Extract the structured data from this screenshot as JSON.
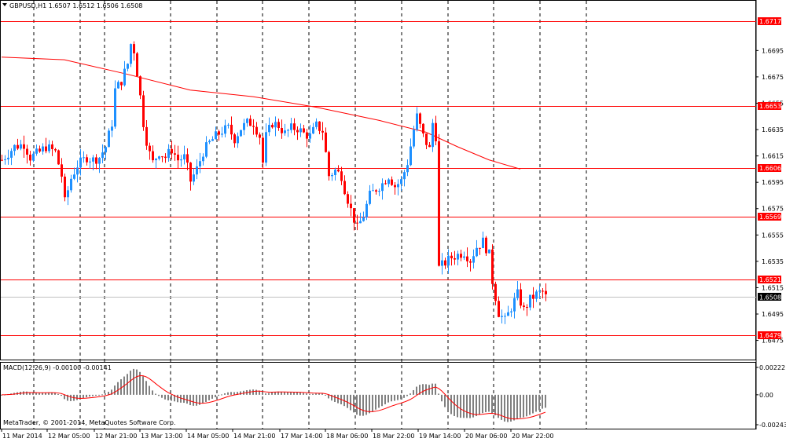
{
  "window": {
    "header": "GBPUSD,H1  1.6507 1.6512 1.6506 1.6508",
    "copyright": "MetaTrader, © 2001-2014, MetaQuotes Software Corp."
  },
  "colors": {
    "bull": "#1e90ff",
    "bear": "#ff0000",
    "ma": "#ff0000",
    "level_line": "#ff0000",
    "grid": "#000000",
    "macd_hist": "#808080",
    "macd_signal": "#ff0000",
    "price_tag_bg": "#ff0000",
    "current_tag_bg": "#000000"
  },
  "price_axis": {
    "ticks": [
      "1.6695",
      "1.6675",
      "1.6655",
      "1.6635",
      "1.6615",
      "1.6595",
      "1.6575",
      "1.6555",
      "1.6535",
      "1.6515",
      "1.6495",
      "1.6475"
    ],
    "levels": [
      "1.6717",
      "1.6653",
      "1.6606",
      "1.6569",
      "1.6521",
      "1.6479"
    ],
    "current_price": "1.6508",
    "range": [
      1.6467,
      1.6725
    ]
  },
  "macd": {
    "label": "MACD(12,26,9) -0.00100 -0.00141",
    "ticks": [
      "0.00222",
      "0.00",
      "-0.00243"
    ],
    "range": [
      -0.00243,
      0.00222
    ]
  },
  "time_axis": {
    "labels": [
      "11 Mar 2014",
      "12 Mar 05:00",
      "12 Mar 21:00",
      "13 Mar 13:00",
      "14 Mar 05:00",
      "14 Mar 21:00",
      "17 Mar 14:00",
      "18 Mar 06:00",
      "18 Mar 22:00",
      "19 Mar 14:00",
      "20 Mar 06:00",
      "20 Mar 22:00"
    ]
  },
  "chart_data": {
    "type": "candlestick",
    "symbol": "GBPUSD",
    "timeframe": "H1",
    "ohlc_last": {
      "open": 1.6507,
      "high": 1.6512,
      "low": 1.6506,
      "close": 1.6508
    },
    "price_anchors": [
      [
        0,
        1.6612
      ],
      [
        8,
        1.6622
      ],
      [
        14,
        1.6624
      ],
      [
        18,
        1.6614
      ],
      [
        24,
        1.6618
      ],
      [
        28,
        1.6622
      ],
      [
        34,
        1.6618
      ],
      [
        38,
        1.66
      ],
      [
        40,
        1.658
      ],
      [
        44,
        1.6598
      ],
      [
        48,
        1.6608
      ],
      [
        54,
        1.6614
      ],
      [
        58,
        1.6612
      ],
      [
        62,
        1.6614
      ],
      [
        66,
        1.6622
      ],
      [
        70,
        1.664
      ],
      [
        72,
        1.6665
      ],
      [
        76,
        1.6672
      ],
      [
        80,
        1.6685
      ],
      [
        82,
        1.67
      ],
      [
        84,
        1.6695
      ],
      [
        87,
        1.667
      ],
      [
        90,
        1.664
      ],
      [
        93,
        1.662
      ],
      [
        96,
        1.661
      ],
      [
        100,
        1.6618
      ],
      [
        104,
        1.6614
      ],
      [
        108,
        1.662
      ],
      [
        112,
        1.6612
      ],
      [
        116,
        1.6614
      ],
      [
        118,
        1.6606
      ],
      [
        120,
        1.6596
      ],
      [
        124,
        1.6605
      ],
      [
        128,
        1.6618
      ],
      [
        132,
        1.6625
      ],
      [
        136,
        1.663
      ],
      [
        140,
        1.6634
      ],
      [
        144,
        1.6636
      ],
      [
        148,
        1.6628
      ],
      [
        152,
        1.6636
      ],
      [
        156,
        1.664
      ],
      [
        160,
        1.664
      ],
      [
        164,
        1.663
      ],
      [
        166,
        1.661
      ],
      [
        168,
        1.663
      ],
      [
        172,
        1.664
      ],
      [
        176,
        1.6638
      ],
      [
        180,
        1.6632
      ],
      [
        184,
        1.6636
      ],
      [
        188,
        1.6636
      ],
      [
        192,
        1.6632
      ],
      [
        196,
        1.663
      ],
      [
        200,
        1.6638
      ],
      [
        204,
        1.6634
      ],
      [
        208,
        1.66
      ],
      [
        212,
        1.6604
      ],
      [
        216,
        1.66
      ],
      [
        218,
        1.659
      ],
      [
        222,
        1.6574
      ],
      [
        226,
        1.656
      ],
      [
        230,
        1.657
      ],
      [
        234,
        1.6585
      ],
      [
        238,
        1.659
      ],
      [
        242,
        1.6594
      ],
      [
        246,
        1.66
      ],
      [
        250,
        1.6592
      ],
      [
        254,
        1.6596
      ],
      [
        258,
        1.661
      ],
      [
        262,
        1.6635
      ],
      [
        264,
        1.6645
      ],
      [
        268,
        1.663
      ],
      [
        272,
        1.662
      ],
      [
        274,
        1.664
      ],
      [
        277,
        1.6625
      ],
      [
        278,
        1.653
      ],
      [
        282,
        1.6534
      ],
      [
        286,
        1.6538
      ],
      [
        290,
        1.654
      ],
      [
        294,
        1.6542
      ],
      [
        298,
        1.6536
      ],
      [
        302,
        1.6546
      ],
      [
        306,
        1.655
      ],
      [
        310,
        1.654
      ],
      [
        312,
        1.652
      ],
      [
        316,
        1.6496
      ],
      [
        320,
        1.649
      ],
      [
        324,
        1.65
      ],
      [
        328,
        1.651
      ],
      [
        332,
        1.6498
      ],
      [
        336,
        1.6506
      ],
      [
        340,
        1.651
      ],
      [
        344,
        1.6512
      ],
      [
        346,
        1.6508
      ]
    ],
    "moving_average": [
      [
        0,
        1.669
      ],
      [
        40,
        1.6688
      ],
      [
        80,
        1.6677
      ],
      [
        120,
        1.6665
      ],
      [
        160,
        1.666
      ],
      [
        200,
        1.6652
      ],
      [
        240,
        1.6642
      ],
      [
        270,
        1.6633
      ],
      [
        290,
        1.6622
      ],
      [
        310,
        1.6612
      ],
      [
        330,
        1.6605
      ]
    ]
  }
}
